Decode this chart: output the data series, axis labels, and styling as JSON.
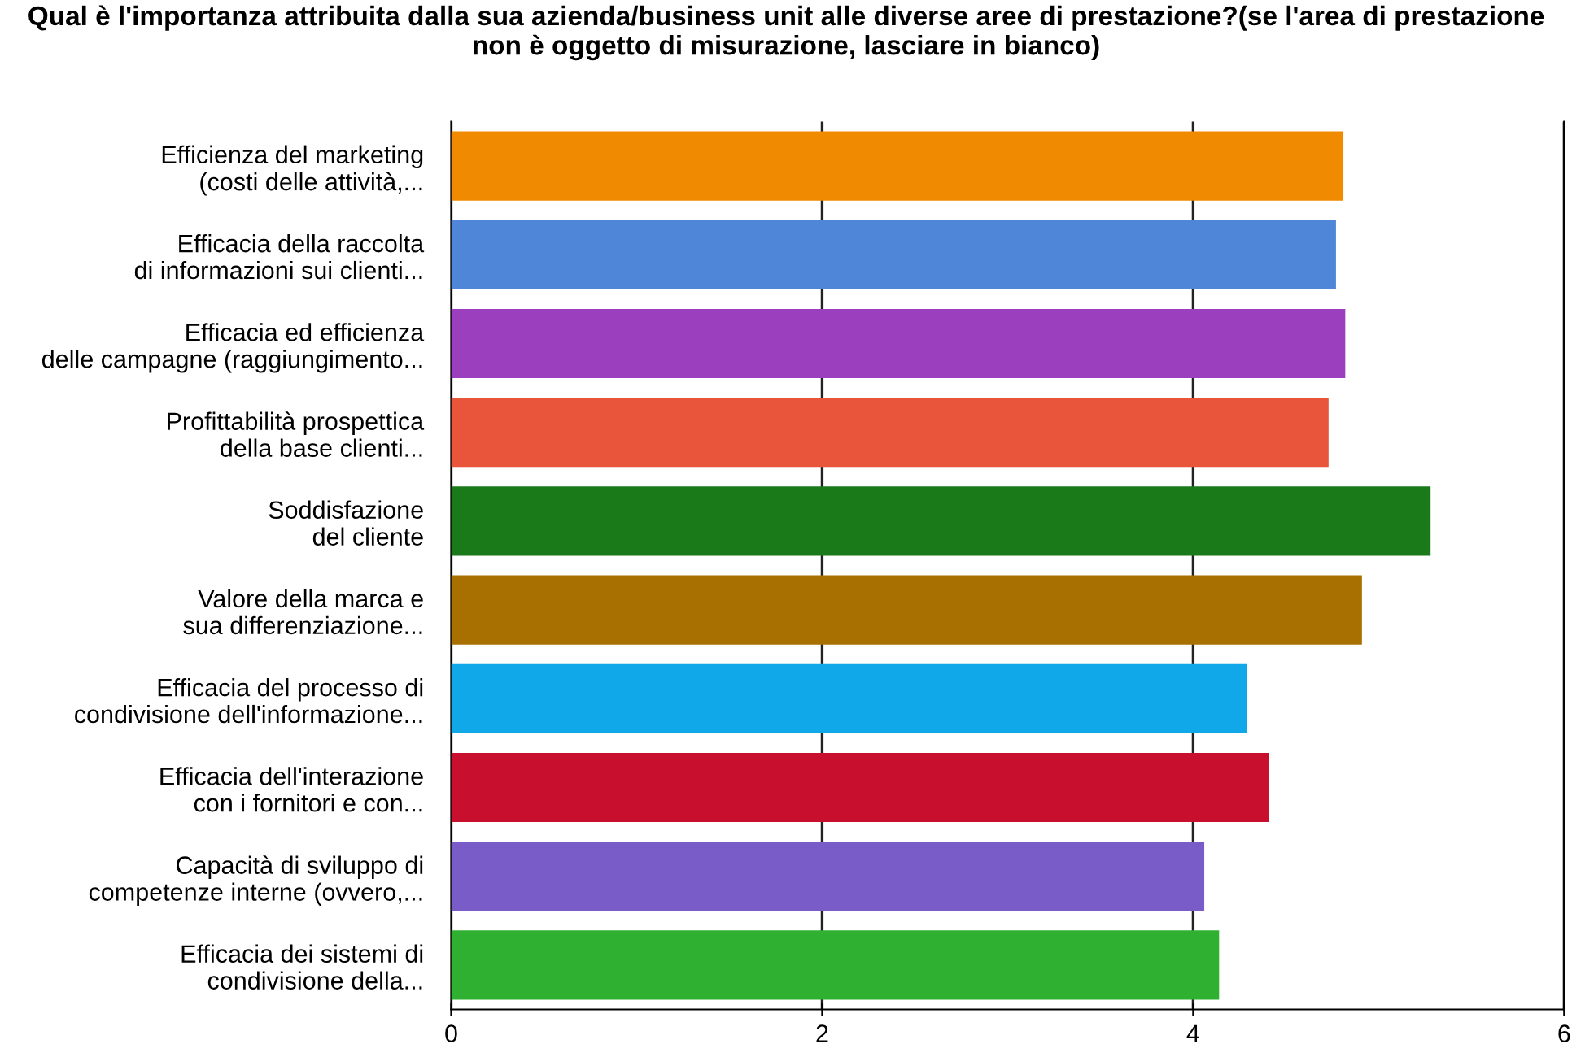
{
  "chart_data": {
    "type": "bar",
    "orientation": "horizontal",
    "title": "Qual è l'importanza attribuita dalla sua azienda/business unit alle diverse aree di prestazione?(se l'area di prestazione non è oggetto di misurazione, lasciare in bianco)",
    "categories": [
      "Efficienza del marketing\n(costi delle attività,...",
      "Efficacia della raccolta\ndi informazioni sui clienti...",
      "Efficacia ed efficienza\ndelle campagne (raggiungimento...",
      "Profittabilità prospettica\ndella base clienti...",
      "Soddisfazione\ndel cliente",
      "Valore della marca e\nsua differenziazione...",
      "Efficacia del processo di\ncondivisione dell'informazione...",
      "Efficacia dell'interazione\ncon i fornitori e con...",
      "Capacità di sviluppo di\ncompetenze interne (ovvero,...",
      "Efficacia dei sistemi di\ncondivisione della..."
    ],
    "values": [
      4.81,
      4.77,
      4.82,
      4.73,
      5.28,
      4.91,
      4.29,
      4.41,
      4.06,
      4.14
    ],
    "colors": [
      "#f08a00",
      "#4f86d8",
      "#9b3fbf",
      "#e8553a",
      "#1a7a1a",
      "#a87000",
      "#10a8e8",
      "#c8102e",
      "#7a5cc8",
      "#30b030"
    ],
    "xlim": [
      0,
      6
    ],
    "xticks": [
      0,
      2,
      4,
      6
    ],
    "grid": "x",
    "legend": false
  }
}
